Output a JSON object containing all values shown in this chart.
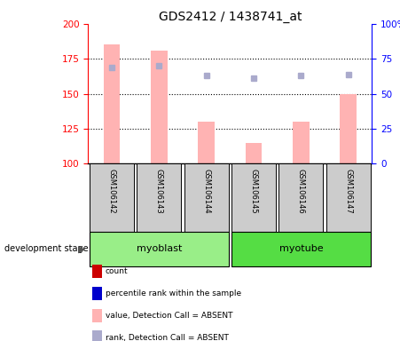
{
  "title": "GDS2412 / 1438741_at",
  "samples": [
    "GSM106142",
    "GSM106143",
    "GSM106144",
    "GSM106145",
    "GSM106146",
    "GSM106147"
  ],
  "bar_values": [
    185,
    181,
    130,
    115,
    130,
    150
  ],
  "rank_values": [
    169,
    170,
    163,
    161,
    163,
    164
  ],
  "ylim_left": [
    100,
    200
  ],
  "ylim_right": [
    0,
    100
  ],
  "yticks_left": [
    100,
    125,
    150,
    175,
    200
  ],
  "ytick_labels_left": [
    "100",
    "125",
    "150",
    "175",
    "200"
  ],
  "yticks_right": [
    0,
    25,
    50,
    75,
    100
  ],
  "ytick_labels_right": [
    "0",
    "25",
    "50",
    "75",
    "100%"
  ],
  "bar_color": "#ffb3b3",
  "rank_color": "#aaaacc",
  "background_color": "#ffffff",
  "label_area_color": "#cccccc",
  "group_color_myoblast": "#99ee88",
  "group_color_myotube": "#55dd44",
  "title_fontsize": 10,
  "tick_fontsize": 7.5,
  "legend_items": [
    {
      "label": "count",
      "color": "#cc0000"
    },
    {
      "label": "percentile rank within the sample",
      "color": "#0000cc"
    },
    {
      "label": "value, Detection Call = ABSENT",
      "color": "#ffb3b3"
    },
    {
      "label": "rank, Detection Call = ABSENT",
      "color": "#aaaacc"
    }
  ],
  "group_defs": [
    {
      "label": "myoblast",
      "start": 0,
      "end": 2,
      "color": "#99ee88"
    },
    {
      "label": "myotube",
      "start": 3,
      "end": 5,
      "color": "#55dd44"
    }
  ]
}
